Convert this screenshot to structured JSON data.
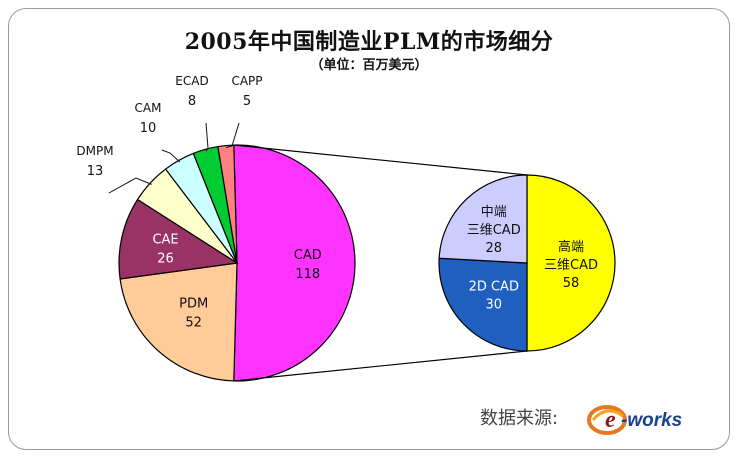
{
  "chart_data": [
    {
      "type": "pie",
      "title": "2005年中国制造业PLM的市场细分",
      "subtitle": "（单位：百万美元）",
      "slices": [
        {
          "label": "CAD",
          "value": 118,
          "color": "#ff33ff"
        },
        {
          "label": "PDM",
          "value": 52,
          "color": "#ffcc99"
        },
        {
          "label": "CAE",
          "value": 26,
          "color": "#993366"
        },
        {
          "label": "DMPM",
          "value": 13,
          "color": "#ffffcc"
        },
        {
          "label": "CAM",
          "value": 10,
          "color": "#ccffff"
        },
        {
          "label": "ECAD",
          "value": 8,
          "color": "#00cc33"
        },
        {
          "label": "CAPP",
          "value": 5,
          "color": "#ff8080"
        }
      ]
    },
    {
      "type": "pie",
      "title": "",
      "slices": [
        {
          "label": "高端三维CAD",
          "line1": "高端",
          "line2": "三维CAD",
          "value": 58,
          "color": "#ffff00"
        },
        {
          "label": "2D CAD",
          "line1": "2D CAD",
          "line2": "",
          "value": 30,
          "color": "#1f5fbf"
        },
        {
          "label": "中端三维CAD",
          "line1": "中端",
          "line2": "三维CAD",
          "value": 28,
          "color": "#ccccff"
        }
      ]
    }
  ],
  "source_label": "数据来源:",
  "logo_text": "e-works"
}
